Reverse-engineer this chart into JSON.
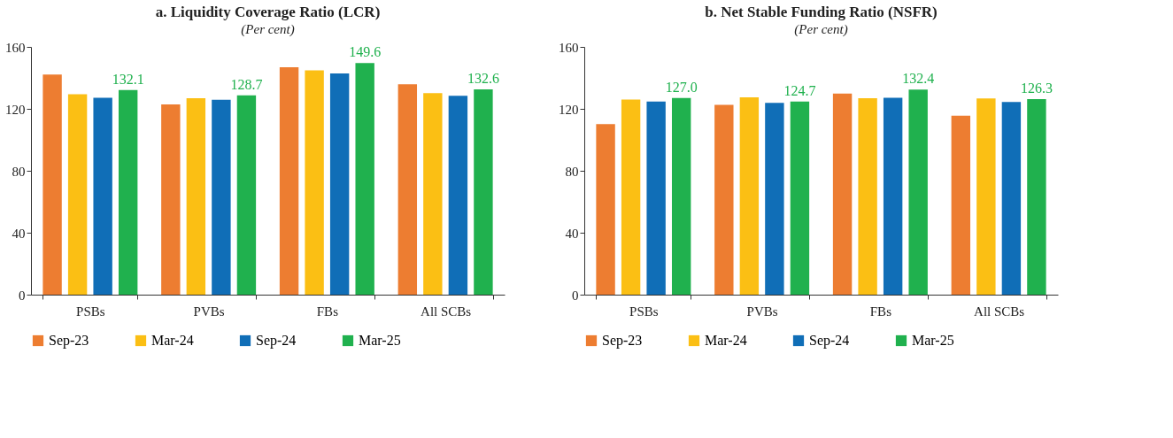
{
  "chart_data": [
    {
      "type": "bar",
      "title": "a. Liquidity Coverage Ratio (LCR)",
      "subtitle": "(Per cent)",
      "categories": [
        "PSBs",
        "PVBs",
        "FBs",
        "All SCBs"
      ],
      "ylim": [
        0,
        160
      ],
      "yticks": [
        0,
        40,
        80,
        120,
        160
      ],
      "grid": false,
      "legend": "bottom",
      "series": [
        {
          "name": "Sep-23",
          "color": "#ed7d31",
          "values": [
            142.1,
            122.9,
            146.9,
            135.9
          ]
        },
        {
          "name": "Mar-24",
          "color": "#fbbf14",
          "values": [
            129.4,
            126.8,
            144.9,
            130.2
          ]
        },
        {
          "name": "Sep-24",
          "color": "#106eb7",
          "values": [
            127.2,
            125.9,
            142.8,
            128.5
          ]
        },
        {
          "name": "Mar-25",
          "color": "#20b14e",
          "values": [
            132.1,
            128.7,
            149.6,
            132.6
          ],
          "value_labels": [
            "132.1",
            "128.7",
            "149.6",
            "132.6"
          ]
        }
      ]
    },
    {
      "type": "bar",
      "title": "b. Net Stable Funding Ratio (NSFR)",
      "subtitle": "(Per cent)",
      "categories": [
        "PSBs",
        "PVBs",
        "FBs",
        "All SCBs"
      ],
      "ylim": [
        0,
        160
      ],
      "yticks": [
        0,
        40,
        80,
        120,
        160
      ],
      "grid": false,
      "legend": "bottom",
      "series": [
        {
          "name": "Sep-23",
          "color": "#ed7d31",
          "values": [
            110.2,
            122.6,
            129.9,
            115.6
          ]
        },
        {
          "name": "Mar-24",
          "color": "#fbbf14",
          "values": [
            126.0,
            127.5,
            126.9,
            126.7
          ]
        },
        {
          "name": "Sep-24",
          "color": "#106eb7",
          "values": [
            124.7,
            123.9,
            127.1,
            124.5
          ]
        },
        {
          "name": "Mar-25",
          "color": "#20b14e",
          "values": [
            127.0,
            124.7,
            132.4,
            126.3
          ],
          "value_labels": [
            "127.0",
            "124.7",
            "132.4",
            "126.3"
          ]
        }
      ]
    }
  ]
}
